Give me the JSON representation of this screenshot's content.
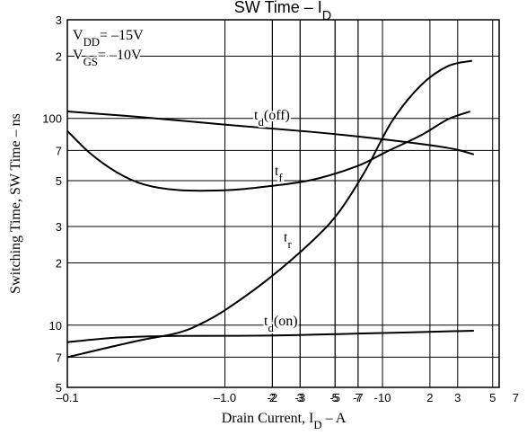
{
  "chart_data": {
    "type": "line",
    "title": {
      "base": "SW Time  –  I",
      "sub": "D"
    },
    "x_label": {
      "base": "Drain Current, I",
      "sub": "D",
      "tail": "  –  A"
    },
    "y_label": "Switching Time, SW Time  –  ns",
    "annotations": [
      {
        "base": "V",
        "sub": "DD",
        "tail": "= –15V"
      },
      {
        "base": "V",
        "sub": "GS",
        "tail": "= –10V"
      }
    ],
    "log_x": true,
    "log_y": true,
    "grid": true,
    "xlim": [
      -0.1,
      -55
    ],
    "ylim": [
      5,
      300
    ],
    "xticks": [
      {
        "value": -0.1,
        "label": "–0.1"
      },
      -2,
      -3,
      -5,
      -7,
      {
        "value": -1.0,
        "label": "–1.0"
      },
      {
        "value": -2,
        "label": "2"
      },
      {
        "value": -3,
        "label": "3"
      },
      {
        "value": -5,
        "label": "5"
      },
      {
        "value": -7,
        "label": "7"
      },
      -10,
      {
        "value": -20,
        "label": "2"
      },
      {
        "value": -30,
        "label": "3"
      },
      {
        "value": -50,
        "label": "5"
      },
      {
        "value": -70,
        "label": "7"
      }
    ],
    "yticks": [
      5,
      7,
      10,
      {
        "value": 20,
        "label": "2"
      },
      {
        "value": 30,
        "label": "3"
      },
      {
        "value": 50,
        "label": "5"
      },
      {
        "value": 70,
        "label": "7"
      },
      100,
      {
        "value": 200,
        "label": "2"
      },
      {
        "value": 300,
        "label": "3"
      }
    ],
    "series": [
      {
        "label": {
          "base": "t",
          "sub": "d",
          "tail": "(off)"
        },
        "color": "#000000",
        "x": [
          -0.1,
          -0.27,
          -1.05,
          -3.6,
          -10.4,
          -26,
          -38
        ],
        "values": [
          108,
          102,
          93,
          86,
          79,
          72,
          67
        ]
      },
      {
        "label": {
          "base": "t",
          "sub": "f"
        },
        "color": "#000000",
        "x": [
          -0.1,
          -0.139,
          -0.205,
          -0.304,
          -0.51,
          -1.05,
          -1.9,
          -3.6,
          -7.0,
          -10.4,
          -17.6,
          -26,
          -36
        ],
        "values": [
          87,
          68,
          55,
          48,
          45,
          45,
          47,
          50.5,
          59,
          68.5,
          83,
          99,
          108
        ]
      },
      {
        "label": {
          "base": "t",
          "sub": "r"
        },
        "color": "#000000",
        "x": [
          -0.1,
          -0.27,
          -0.51,
          -0.75,
          -1.05,
          -1.9,
          -3.6,
          -5.3,
          -7.8,
          -11.5,
          -17.6,
          -26,
          -37
        ],
        "values": [
          7.0,
          8.35,
          9.2,
          10.4,
          12.1,
          16.8,
          25.6,
          35.3,
          56,
          97,
          145,
          179,
          190
        ]
      },
      {
        "label": {
          "base": "t",
          "sub": "d",
          "tail": "(on)"
        },
        "color": "#000000",
        "x": [
          -0.1,
          -0.205,
          -0.51,
          -1.9,
          -7.0,
          -38
        ],
        "values": [
          8.27,
          8.7,
          8.87,
          8.9,
          9.1,
          9.4
        ]
      }
    ]
  }
}
